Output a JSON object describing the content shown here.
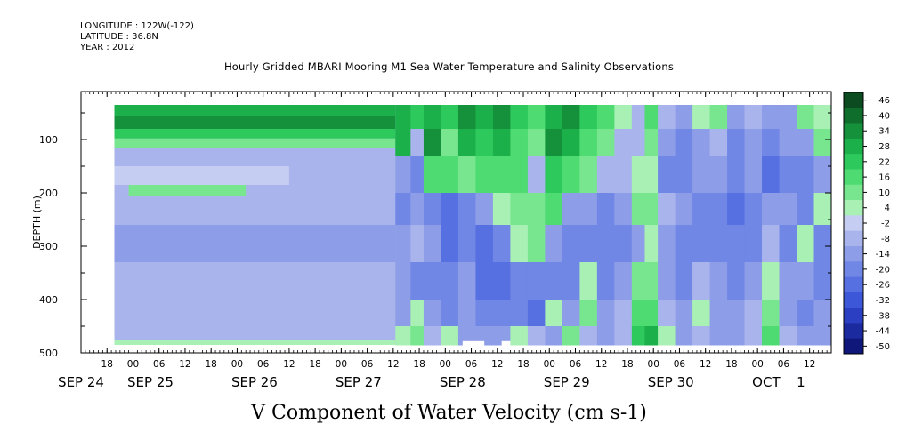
{
  "meta": {
    "longitude": "LONGITUDE : 122W(-122)",
    "latitude": "LATITUDE : 36.8N",
    "year": "YEAR : 2012"
  },
  "chart_data": {
    "type": "heatmap",
    "title": "Hourly Gridded MBARI Mooring M1 Sea Water Temperature and Salinity Observations",
    "xlabel": "V Component of Water Velocity (cm s-1)",
    "ylabel": "DEPTH (m)",
    "x_hour_ticks": [
      {
        "t": 18,
        "label": "18"
      },
      {
        "t": 24,
        "label": "00"
      },
      {
        "t": 30,
        "label": "06"
      },
      {
        "t": 36,
        "label": "12"
      },
      {
        "t": 42,
        "label": "18"
      },
      {
        "t": 48,
        "label": "00"
      },
      {
        "t": 54,
        "label": "06"
      },
      {
        "t": 60,
        "label": "12"
      },
      {
        "t": 66,
        "label": "18"
      },
      {
        "t": 72,
        "label": "00"
      },
      {
        "t": 78,
        "label": "06"
      },
      {
        "t": 84,
        "label": "12"
      },
      {
        "t": 90,
        "label": "18"
      },
      {
        "t": 96,
        "label": "00"
      },
      {
        "t": 102,
        "label": "06"
      },
      {
        "t": 108,
        "label": "12"
      },
      {
        "t": 114,
        "label": "18"
      },
      {
        "t": 120,
        "label": "00"
      },
      {
        "t": 126,
        "label": "06"
      },
      {
        "t": 132,
        "label": "12"
      },
      {
        "t": 138,
        "label": "18"
      },
      {
        "t": 144,
        "label": "00"
      },
      {
        "t": 150,
        "label": "06"
      },
      {
        "t": 156,
        "label": "12"
      },
      {
        "t": 162,
        "label": "18"
      },
      {
        "t": 168,
        "label": "00"
      },
      {
        "t": 174,
        "label": "06"
      },
      {
        "t": 180,
        "label": "12"
      }
    ],
    "x_date_labels": [
      {
        "t": 12,
        "label": "SEP 24"
      },
      {
        "t": 28,
        "label": "SEP 25"
      },
      {
        "t": 52,
        "label": "SEP 26"
      },
      {
        "t": 76,
        "label": "SEP 27"
      },
      {
        "t": 100,
        "label": "SEP 28"
      },
      {
        "t": 124,
        "label": "SEP 29"
      },
      {
        "t": 148,
        "label": "SEP 30"
      },
      {
        "t": 170,
        "label": "OCT"
      },
      {
        "t": 178,
        "label": "1"
      }
    ],
    "xlim_hours": [
      12,
      185
    ],
    "y_ticks": [
      100,
      200,
      300,
      400,
      500
    ],
    "y_minor_ticks": [
      50,
      150,
      250,
      350,
      450
    ],
    "ylim": [
      500,
      10
    ],
    "data_extent": {
      "t_start": 19.7,
      "t_end": 185,
      "depth_top": 35,
      "depth_bottom": 485
    },
    "colorbar": {
      "levels": [
        "46",
        "40",
        "34",
        "28",
        "22",
        "16",
        "10",
        "4",
        "-2",
        "-8",
        "-14",
        "-20",
        "-26",
        "-32",
        "-38",
        "-44",
        "-50"
      ],
      "colors": [
        "#0c4a1f",
        "#0f6e2c",
        "#14913a",
        "#1bb04a",
        "#2ec95c",
        "#4ddb72",
        "#77e68f",
        "#a8f0b3",
        "#c6cdf2",
        "#aab4ec",
        "#8e9de8",
        "#7187e5",
        "#5670e2",
        "#3c57d8",
        "#2a3fc2",
        "#1c2aa0",
        "#0f187a"
      ]
    },
    "bands": [
      {
        "t0": 19.7,
        "t1": 84.5,
        "d0": 35,
        "d1": 55,
        "v": 28
      },
      {
        "t0": 19.7,
        "t1": 84.5,
        "d0": 55,
        "d1": 80,
        "v": 34
      },
      {
        "t0": 19.7,
        "t1": 84.5,
        "d0": 80,
        "d1": 98,
        "v": 22
      },
      {
        "t0": 19.7,
        "t1": 84.5,
        "d0": 98,
        "d1": 115,
        "v": 8
      },
      {
        "t0": 19.7,
        "t1": 70,
        "d0": 115,
        "d1": 150,
        "v": -6
      },
      {
        "t0": 19.7,
        "t1": 60,
        "d0": 150,
        "d1": 185,
        "v": -4
      },
      {
        "t0": 23,
        "t1": 50,
        "d0": 185,
        "d1": 205,
        "v": 12
      },
      {
        "t0": 19.7,
        "t1": 84.5,
        "d0": 205,
        "d1": 260,
        "v": -8
      },
      {
        "t0": 19.7,
        "t1": 84.5,
        "d0": 260,
        "d1": 330,
        "v": -12
      },
      {
        "t0": 19.7,
        "t1": 84.5,
        "d0": 330,
        "d1": 420,
        "v": -10
      },
      {
        "t0": 19.7,
        "t1": 84.5,
        "d0": 420,
        "d1": 475,
        "v": -6
      },
      {
        "t0": 19.7,
        "t1": 84.5,
        "d0": 475,
        "d1": 485,
        "v": 6
      }
    ],
    "columns": [
      {
        "t0": 84.5,
        "t1": 88,
        "v": [
          30,
          28,
          -16,
          -18,
          -14,
          -12,
          -16,
          6
        ]
      },
      {
        "t0": 88,
        "t1": 91,
        "v": [
          20,
          -6,
          -18,
          -14,
          -10,
          -20,
          6,
          8
        ]
      },
      {
        "t0": 91,
        "t1": 95,
        "v": [
          28,
          34,
          16,
          -22,
          -16,
          -20,
          -14,
          -10
        ]
      },
      {
        "t0": 95,
        "t1": 99,
        "v": [
          22,
          10,
          14,
          -24,
          -26,
          -18,
          -20,
          4
        ]
      },
      {
        "t0": 99,
        "t1": 103,
        "v": [
          34,
          28,
          10,
          -18,
          -22,
          -16,
          -14,
          -12
        ]
      },
      {
        "t0": 103,
        "t1": 107,
        "v": [
          28,
          22,
          16,
          -16,
          -28,
          -24,
          -20,
          -16
        ]
      },
      {
        "t0": 107,
        "t1": 111,
        "v": [
          34,
          28,
          18,
          6,
          -20,
          -26,
          -18,
          -14
        ]
      },
      {
        "t0": 111,
        "t1": 115,
        "v": [
          22,
          16,
          18,
          10,
          4,
          -18,
          -20,
          6
        ]
      },
      {
        "t0": 115,
        "t1": 119,
        "v": [
          16,
          10,
          -8,
          12,
          8,
          -22,
          -24,
          -10
        ]
      },
      {
        "t0": 119,
        "t1": 123,
        "v": [
          28,
          34,
          22,
          14,
          -16,
          -20,
          6,
          -14
        ]
      },
      {
        "t0": 123,
        "t1": 127,
        "v": [
          34,
          28,
          16,
          -12,
          -22,
          -18,
          -16,
          8
        ]
      },
      {
        "t0": 127,
        "t1": 131,
        "v": [
          22,
          18,
          10,
          -16,
          -20,
          4,
          10,
          -10
        ]
      },
      {
        "t0": 131,
        "t1": 135,
        "v": [
          16,
          12,
          -6,
          -20,
          -18,
          -22,
          -14,
          -12
        ]
      },
      {
        "t0": 135,
        "t1": 139,
        "v": [
          4,
          -6,
          -10,
          -14,
          -18,
          -16,
          -10,
          -8
        ]
      },
      {
        "t0": 139,
        "t1": 142,
        "v": [
          -6,
          -10,
          6,
          8,
          -16,
          10,
          16,
          22
        ]
      },
      {
        "t0": 142,
        "t1": 145,
        "v": [
          16,
          10,
          4,
          10,
          6,
          12,
          18,
          28
        ]
      },
      {
        "t0": 145,
        "t1": 149,
        "v": [
          -10,
          -16,
          -18,
          -8,
          -12,
          -14,
          -6,
          4
        ]
      },
      {
        "t0": 149,
        "t1": 153,
        "v": [
          -14,
          -20,
          -22,
          -16,
          -18,
          -20,
          -16,
          -12
        ]
      },
      {
        "t0": 153,
        "t1": 157,
        "v": [
          4,
          -12,
          -16,
          -18,
          -20,
          -8,
          6,
          -10
        ]
      },
      {
        "t0": 157,
        "t1": 161,
        "v": [
          10,
          -8,
          -14,
          -20,
          -18,
          -16,
          -14,
          -12
        ]
      },
      {
        "t0": 161,
        "t1": 165,
        "v": [
          -14,
          -18,
          -20,
          -24,
          -22,
          -18,
          -16,
          -14
        ]
      },
      {
        "t0": 165,
        "t1": 169,
        "v": [
          -10,
          -16,
          -14,
          -18,
          -20,
          -16,
          -6,
          -10
        ]
      },
      {
        "t0": 169,
        "t1": 173,
        "v": [
          -16,
          -22,
          -26,
          -14,
          -8,
          6,
          10,
          16
        ]
      },
      {
        "t0": 173,
        "t1": 177,
        "v": [
          -12,
          -14,
          -18,
          -16,
          -20,
          -14,
          -12,
          -10
        ]
      },
      {
        "t0": 177,
        "t1": 181,
        "v": [
          10,
          -16,
          -20,
          -22,
          4,
          -16,
          -18,
          -14
        ]
      },
      {
        "t0": 181,
        "t1": 185,
        "v": [
          6,
          10,
          -14,
          4,
          -18,
          -20,
          -16,
          -12
        ]
      }
    ],
    "column_depth_edges": [
      35,
      80,
      130,
      200,
      260,
      330,
      400,
      450,
      485
    ],
    "gaps": [
      {
        "t0": 100,
        "t1": 105,
        "d0": 478,
        "d1": 490
      },
      {
        "t0": 109,
        "t1": 111,
        "d0": 478,
        "d1": 490
      }
    ]
  }
}
